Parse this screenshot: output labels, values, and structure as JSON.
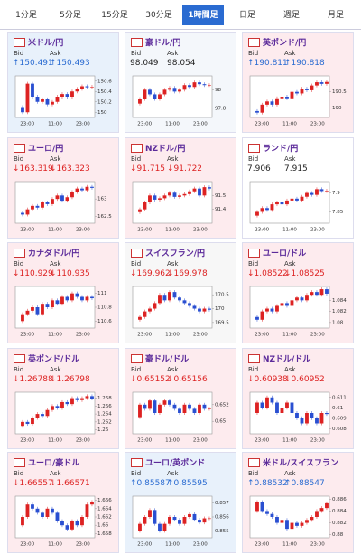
{
  "tabs": {
    "labels": [
      "1分足",
      "5分足",
      "15分足",
      "30分足",
      "1時間足",
      "日足",
      "週足",
      "月足"
    ],
    "active": 4
  },
  "bid_label": "Bid",
  "ask_label": "Ask",
  "x_labels": [
    "23:00",
    "11:00",
    "23:00"
  ],
  "cards": [
    {
      "title": "米ドル/円",
      "bg": "#e8f1fb",
      "bid": "↑150.491",
      "ask": "↑150.493",
      "ylim": [
        149.9,
        150.7
      ],
      "yticks": [
        150.6,
        150.4,
        150.2,
        150
      ],
      "closes": [
        150.1,
        150.0,
        150.55,
        150.3,
        150.2,
        150.25,
        150.15,
        150.2,
        150.3,
        150.35,
        150.3,
        150.4,
        150.45,
        150.5,
        150.48,
        150.49
      ]
    },
    {
      "title": "豪ドル/円",
      "bg": "#f4f7fb",
      "bid": "98.049",
      "ask": "98.054",
      "ylim": [
        97.7,
        98.15
      ],
      "yticks": [
        98,
        97.8
      ],
      "closes": [
        97.85,
        97.9,
        98.0,
        97.95,
        97.9,
        97.95,
        98.0,
        98.02,
        97.98,
        98.0,
        98.05,
        98.03,
        98.08,
        98.06,
        98.05,
        98.05
      ]
    },
    {
      "title": "英ポンド/円",
      "bg": "#fdebee",
      "bid": "↑190.811",
      "ask": "↑190.818",
      "ylim": [
        189.7,
        191
      ],
      "yticks": [
        190.5,
        190
      ],
      "closes": [
        189.9,
        189.85,
        190.1,
        190.2,
        190.1,
        190.3,
        190.35,
        190.3,
        190.5,
        190.45,
        190.6,
        190.55,
        190.7,
        190.8,
        190.75,
        190.81
      ]
    },
    {
      "title": "ユーロ/円",
      "bg": "#fdebee",
      "bid": "↓163.319",
      "ask": "↓163.323",
      "ylim": [
        162.3,
        163.5
      ],
      "yticks": [
        163,
        162.5
      ],
      "closes": [
        162.6,
        162.55,
        162.7,
        162.8,
        162.75,
        162.9,
        162.85,
        163.0,
        163.1,
        162.95,
        163.05,
        163.2,
        163.3,
        163.25,
        163.35,
        163.32
      ]
    },
    {
      "title": "NZドル/円",
      "bg": "#fdebee",
      "bid": "↓91.715",
      "ask": "↓91.722",
      "ylim": [
        91.3,
        91.6
      ],
      "yticks": [
        91.5,
        91.4
      ],
      "closes": [
        91.38,
        91.4,
        91.45,
        91.5,
        91.47,
        91.48,
        91.5,
        91.52,
        91.49,
        91.5,
        91.51,
        91.53,
        91.55,
        91.5,
        91.56,
        91.55
      ]
    },
    {
      "title": "ランド/円",
      "bg": "#ffffff",
      "bid": "7.906",
      "ask": "7.915",
      "ylim": [
        7.82,
        7.93
      ],
      "yticks": [
        7.9,
        7.85
      ],
      "closes": [
        7.84,
        7.85,
        7.86,
        7.855,
        7.87,
        7.875,
        7.87,
        7.88,
        7.885,
        7.88,
        7.89,
        7.9,
        7.895,
        7.91,
        7.905,
        7.906
      ]
    },
    {
      "title": "カナダドル/円",
      "bg": "#fdebee",
      "bid": "↓110.929",
      "ask": "↓110.935",
      "ylim": [
        110.5,
        111.1
      ],
      "yticks": [
        111,
        110.8,
        110.6
      ],
      "closes": [
        110.6,
        110.7,
        110.75,
        110.8,
        110.7,
        110.85,
        110.8,
        110.9,
        110.85,
        110.95,
        110.9,
        111.0,
        110.95,
        110.9,
        110.95,
        110.93
      ]
    },
    {
      "title": "スイスフラン/円",
      "bg": "#f7f7f7",
      "bid": "↓169.962",
      "ask": "↓169.978",
      "ylim": [
        169.3,
        170.8
      ],
      "yticks": [
        170.5,
        170,
        169.5
      ],
      "closes": [
        169.6,
        169.7,
        169.9,
        170.0,
        170.2,
        170.5,
        170.3,
        170.6,
        170.4,
        170.3,
        170.2,
        170.1,
        170.0,
        169.9,
        170.0,
        169.96
      ]
    },
    {
      "title": "ユーロ/ドル",
      "bg": "#fdebee",
      "bid": "↓1.08522",
      "ask": "↓1.08525",
      "ylim": [
        1.079,
        1.0865
      ],
      "yticks": [
        1.084,
        1.082,
        1.08
      ],
      "closes": [
        1.081,
        1.0805,
        1.082,
        1.0825,
        1.082,
        1.083,
        1.0835,
        1.083,
        1.084,
        1.0845,
        1.084,
        1.085,
        1.0855,
        1.085,
        1.086,
        1.0852
      ]
    },
    {
      "title": "英ポンド/ドル",
      "bg": "#fdebee",
      "bid": "↓1.26788",
      "ask": "↓1.26798",
      "ylim": [
        1.259,
        1.2695
      ],
      "yticks": [
        1.268,
        1.266,
        1.264,
        1.262,
        1.26
      ],
      "closes": [
        1.261,
        1.262,
        1.2615,
        1.263,
        1.264,
        1.2635,
        1.265,
        1.266,
        1.2655,
        1.267,
        1.2665,
        1.268,
        1.2675,
        1.268,
        1.2685,
        1.2679
      ]
    },
    {
      "title": "豪ドル/ドル",
      "bg": "#fdebee",
      "bid": "↓0.65152",
      "ask": "↓0.65156",
      "ylim": [
        0.6485,
        0.6535
      ],
      "yticks": [
        0.652,
        0.65
      ],
      "closes": [
        0.6505,
        0.652,
        0.6515,
        0.6525,
        0.651,
        0.652,
        0.6525,
        0.652,
        0.6515,
        0.651,
        0.652,
        0.6515,
        0.651,
        0.652,
        0.6515,
        0.6515
      ]
    },
    {
      "title": "NZドル/ドル",
      "bg": "#fdebee",
      "bid": "↓0.60938",
      "ask": "↓0.60952",
      "ylim": [
        0.6075,
        0.6115
      ],
      "yticks": [
        0.611,
        0.61,
        0.609,
        0.608
      ],
      "closes": [
        0.6095,
        0.6105,
        0.61,
        0.611,
        0.6105,
        0.6095,
        0.61,
        0.6105,
        0.6095,
        0.609,
        0.6085,
        0.6095,
        0.609,
        0.6085,
        0.6095,
        0.6094
      ]
    },
    {
      "title": "ユーロ/豪ドル",
      "bg": "#fdebee",
      "bid": "↓1.66557",
      "ask": "↓1.66571",
      "ylim": [
        1.657,
        1.667
      ],
      "yticks": [
        1.666,
        1.664,
        1.662,
        1.66,
        1.658
      ],
      "closes": [
        1.66,
        1.662,
        1.665,
        1.664,
        1.663,
        1.662,
        1.664,
        1.663,
        1.661,
        1.66,
        1.659,
        1.661,
        1.66,
        1.662,
        1.665,
        1.6656
      ]
    },
    {
      "title": "ユーロ/英ポンド",
      "bg": "#e8f1fb",
      "bid": "↑0.85587",
      "ask": "↑0.85595",
      "ylim": [
        0.8545,
        0.8575
      ],
      "yticks": [
        0.857,
        0.856,
        0.855
      ],
      "closes": [
        0.855,
        0.8555,
        0.856,
        0.8565,
        0.8555,
        0.855,
        0.8555,
        0.856,
        0.8558,
        0.8555,
        0.856,
        0.8562,
        0.8558,
        0.8556,
        0.8559,
        0.8559
      ]
    },
    {
      "title": "米ドル/スイスフラン",
      "bg": "#fdebee",
      "bid": "↑0.88532",
      "ask": "↑0.88547",
      "ylim": [
        0.8795,
        0.8865
      ],
      "yticks": [
        0.886,
        0.884,
        0.882,
        0.88
      ],
      "closes": [
        0.884,
        0.8855,
        0.884,
        0.8835,
        0.883,
        0.882,
        0.8825,
        0.881,
        0.882,
        0.8815,
        0.882,
        0.8825,
        0.883,
        0.884,
        0.8845,
        0.8853
      ]
    }
  ]
}
